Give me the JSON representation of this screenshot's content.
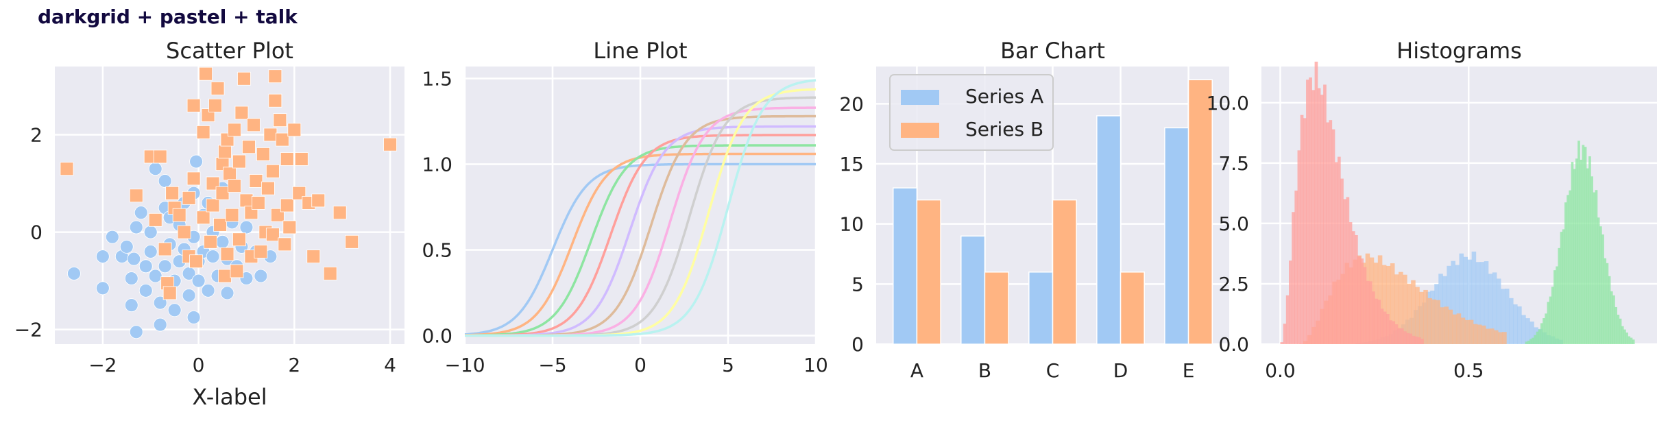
{
  "figure": {
    "suptitle": "darkgrid + pastel + talk",
    "colors": {
      "panel_bg": "#eaeaf2",
      "grid": "#ffffff",
      "text": "#222222",
      "suptitle": "#12093f",
      "legend_edge": "#cccccc",
      "palette": [
        "#a1c9f4",
        "#ffb482",
        "#8de5a1",
        "#ff9f9b",
        "#d0bbff",
        "#debb9b",
        "#fab0e4",
        "#cfcfcf",
        "#fffea3",
        "#b9f2f0"
      ]
    }
  },
  "chart_data": [
    {
      "type": "scatter",
      "title": "Scatter Plot",
      "xlabel": "X-label",
      "ylabel": "",
      "xlim": [
        -3.0,
        4.3
      ],
      "ylim": [
        -2.3,
        3.4
      ],
      "xticks": [
        -2,
        0,
        2,
        4
      ],
      "xtick_labels": [
        "−2",
        "0",
        "2",
        "4"
      ],
      "yticks": [
        -2,
        0,
        2
      ],
      "ytick_labels": [
        "−2",
        "0",
        "2"
      ],
      "grid": true,
      "series": [
        {
          "marker": "circle",
          "color": "#a1c9f4",
          "points": [
            [
              -2.6,
              -0.85
            ],
            [
              -2.0,
              -1.15
            ],
            [
              -2.0,
              -0.5
            ],
            [
              -1.8,
              -0.1
            ],
            [
              -1.6,
              -0.5
            ],
            [
              -1.5,
              -0.3
            ],
            [
              -1.4,
              -1.5
            ],
            [
              -1.4,
              -0.95
            ],
            [
              -1.35,
              -0.55
            ],
            [
              -1.3,
              0.1
            ],
            [
              -1.3,
              -2.05
            ],
            [
              -1.2,
              0.4
            ],
            [
              -1.1,
              -0.7
            ],
            [
              -1.1,
              -1.2
            ],
            [
              -1.0,
              -0.4
            ],
            [
              -1.0,
              0.0
            ],
            [
              -0.9,
              1.3
            ],
            [
              -0.9,
              -0.9
            ],
            [
              -0.8,
              -1.9
            ],
            [
              -0.8,
              -1.45
            ],
            [
              -0.7,
              0.5
            ],
            [
              -0.7,
              1.05
            ],
            [
              -0.7,
              -0.7
            ],
            [
              -0.6,
              -0.25
            ],
            [
              -0.6,
              0.3
            ],
            [
              -0.5,
              -1.0
            ],
            [
              -0.5,
              -1.6
            ],
            [
              -0.4,
              -0.6
            ],
            [
              -0.4,
              0.15
            ],
            [
              -0.3,
              -0.35
            ],
            [
              -0.3,
              0.6
            ],
            [
              -0.2,
              -0.85
            ],
            [
              -0.2,
              -1.3
            ],
            [
              -0.1,
              0.8
            ],
            [
              -0.1,
              -0.1
            ],
            [
              0.0,
              -0.6
            ],
            [
              0.0,
              -1.0
            ],
            [
              -0.1,
              -1.75
            ],
            [
              0.1,
              -0.4
            ],
            [
              0.1,
              0.35
            ],
            [
              0.2,
              -1.2
            ],
            [
              0.3,
              -0.5
            ],
            [
              0.3,
              0.0
            ],
            [
              0.4,
              -0.9
            ],
            [
              0.5,
              -0.2
            ],
            [
              0.5,
              0.9
            ],
            [
              0.6,
              -1.25
            ],
            [
              0.6,
              -0.55
            ],
            [
              0.7,
              0.2
            ],
            [
              0.8,
              -0.7
            ],
            [
              0.9,
              -0.3
            ],
            [
              1.0,
              0.1
            ],
            [
              1.0,
              -0.95
            ],
            [
              1.2,
              -0.4
            ],
            [
              1.3,
              -0.9
            ],
            [
              1.5,
              -0.5
            ],
            [
              -0.05,
              1.45
            ],
            [
              0.2,
              0.6
            ]
          ]
        },
        {
          "marker": "square",
          "color": "#ffb482",
          "points": [
            [
              -2.75,
              1.3
            ],
            [
              -1.3,
              0.75
            ],
            [
              -1.0,
              1.55
            ],
            [
              -0.9,
              0.25
            ],
            [
              -0.8,
              1.55
            ],
            [
              -0.7,
              -0.35
            ],
            [
              -0.65,
              -1.05
            ],
            [
              -0.6,
              -1.25
            ],
            [
              -0.55,
              0.8
            ],
            [
              -0.5,
              0.5
            ],
            [
              -0.4,
              0.35
            ],
            [
              -0.3,
              0.0
            ],
            [
              -0.2,
              -0.5
            ],
            [
              -0.2,
              0.7
            ],
            [
              -0.1,
              2.6
            ],
            [
              -0.1,
              1.1
            ],
            [
              -0.05,
              -0.6
            ],
            [
              0.1,
              0.3
            ],
            [
              0.1,
              2.05
            ],
            [
              0.15,
              3.25
            ],
            [
              0.2,
              2.4
            ],
            [
              0.25,
              -0.2
            ],
            [
              0.3,
              1.0
            ],
            [
              0.3,
              0.55
            ],
            [
              0.35,
              2.6
            ],
            [
              0.4,
              2.95
            ],
            [
              0.45,
              0.15
            ],
            [
              0.5,
              1.4
            ],
            [
              0.5,
              0.8
            ],
            [
              0.55,
              -0.9
            ],
            [
              0.55,
              1.65
            ],
            [
              0.6,
              -0.45
            ],
            [
              0.6,
              1.9
            ],
            [
              0.65,
              1.2
            ],
            [
              0.7,
              0.35
            ],
            [
              0.75,
              2.1
            ],
            [
              0.75,
              0.95
            ],
            [
              0.8,
              -0.8
            ],
            [
              0.85,
              1.45
            ],
            [
              0.85,
              -0.15
            ],
            [
              0.9,
              2.45
            ],
            [
              0.95,
              3.15
            ],
            [
              1.0,
              0.65
            ],
            [
              1.05,
              1.75
            ],
            [
              1.1,
              0.4
            ],
            [
              1.1,
              -0.5
            ],
            [
              1.15,
              2.2
            ],
            [
              1.2,
              1.05
            ],
            [
              1.25,
              0.6
            ],
            [
              1.3,
              -0.4
            ],
            [
              1.35,
              1.6
            ],
            [
              1.4,
              0.0
            ],
            [
              1.45,
              0.9
            ],
            [
              1.5,
              2.0
            ],
            [
              1.55,
              -0.05
            ],
            [
              1.55,
              1.25
            ],
            [
              1.6,
              2.7
            ],
            [
              1.6,
              3.2
            ],
            [
              1.65,
              0.35
            ],
            [
              1.7,
              2.3
            ],
            [
              1.75,
              1.9
            ],
            [
              1.8,
              -0.25
            ],
            [
              1.85,
              1.5
            ],
            [
              1.85,
              0.55
            ],
            [
              1.9,
              0.1
            ],
            [
              2.0,
              2.1
            ],
            [
              2.1,
              0.8
            ],
            [
              2.15,
              1.5
            ],
            [
              2.3,
              0.6
            ],
            [
              2.4,
              -0.5
            ],
            [
              2.5,
              0.65
            ],
            [
              2.75,
              -0.85
            ],
            [
              2.95,
              0.4
            ],
            [
              3.2,
              -0.2
            ],
            [
              4.0,
              1.8
            ]
          ]
        }
      ]
    },
    {
      "type": "line",
      "title": "Line Plot",
      "xlabel": "",
      "ylabel": "",
      "xlim": [
        -10,
        10
      ],
      "ylim": [
        -0.05,
        1.57
      ],
      "xticks": [
        -10,
        -5,
        0,
        5,
        10
      ],
      "xtick_labels": [
        "−10",
        "−5",
        "0",
        "5",
        "10"
      ],
      "yticks": [
        0.0,
        0.5,
        1.0,
        1.5
      ],
      "ytick_labels": [
        "0.0",
        "0.5",
        "1.0",
        "1.5"
      ],
      "grid": true,
      "curve_note": "logistic curves amplitude*(1/(1+exp(-(x-center))))",
      "series": [
        {
          "color": "#a1c9f4",
          "center": -5.0,
          "amplitude": 1.0
        },
        {
          "color": "#ffb482",
          "center": -3.9,
          "amplitude": 1.06
        },
        {
          "color": "#8de5a1",
          "center": -2.8,
          "amplitude": 1.11
        },
        {
          "color": "#ff9f9b",
          "center": -1.7,
          "amplitude": 1.17
        },
        {
          "color": "#d0bbff",
          "center": -0.6,
          "amplitude": 1.22
        },
        {
          "color": "#debb9b",
          "center": 0.6,
          "amplitude": 1.28
        },
        {
          "color": "#fab0e4",
          "center": 1.7,
          "amplitude": 1.33
        },
        {
          "color": "#cfcfcf",
          "center": 2.8,
          "amplitude": 1.39
        },
        {
          "color": "#fffea3",
          "center": 3.9,
          "amplitude": 1.44
        },
        {
          "color": "#b9f2f0",
          "center": 5.0,
          "amplitude": 1.5
        }
      ]
    },
    {
      "type": "bar",
      "title": "Bar Chart",
      "xlabel": "",
      "ylabel": "",
      "categories": [
        "A",
        "B",
        "C",
        "D",
        "E"
      ],
      "ylim": [
        0,
        23.1
      ],
      "yticks": [
        0,
        5,
        10,
        15,
        20
      ],
      "ytick_labels": [
        "0",
        "5",
        "10",
        "15",
        "20"
      ],
      "grid": true,
      "legend": "top-left",
      "series": [
        {
          "name": "Series A",
          "color": "#a1c9f4",
          "values": [
            13,
            9,
            6,
            19,
            18
          ]
        },
        {
          "name": "Series B",
          "color": "#ffb482",
          "values": [
            12,
            6,
            12,
            6,
            22
          ]
        }
      ]
    },
    {
      "type": "histogram",
      "title": "Histograms",
      "xlabel": "",
      "ylabel": "",
      "xlim": [
        -0.05,
        1.0
      ],
      "ylim": [
        0,
        11.5
      ],
      "xticks": [
        0.0,
        0.5
      ],
      "xtick_labels": [
        "0.0",
        "0.5"
      ],
      "yticks": [
        0.0,
        2.5,
        5.0,
        7.5,
        10.0
      ],
      "ytick_labels": [
        "0.0",
        "2.5",
        "5.0",
        "7.5",
        "10.0"
      ],
      "grid": true,
      "alpha": 0.75,
      "series": [
        {
          "color": "#a1c9f4",
          "distribution": "normal",
          "mean": 0.5,
          "sd": 0.1,
          "peak": 3.65,
          "range": [
            0.2,
            0.75
          ]
        },
        {
          "color": "#ffb482",
          "distribution": "right-skewed",
          "mode": 0.23,
          "peak": 3.6,
          "range": [
            0.05,
            0.6
          ]
        },
        {
          "color": "#8de5a1",
          "distribution": "normal",
          "mean": 0.8,
          "sd": 0.05,
          "peak": 8.1,
          "range": [
            0.65,
            0.94
          ]
        },
        {
          "color": "#ff9f9b",
          "distribution": "right-skewed",
          "mode": 0.09,
          "peak": 11.1,
          "range": [
            0.0,
            0.38
          ]
        }
      ]
    }
  ]
}
